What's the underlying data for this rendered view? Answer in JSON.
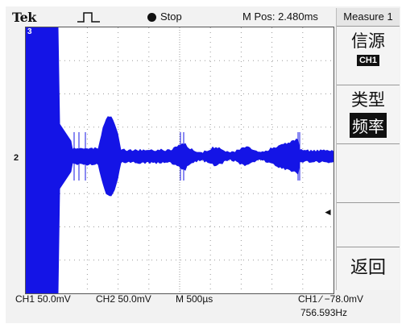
{
  "header": {
    "brand": "Tek",
    "trigger_mode_icon": "pulse-icon",
    "run_state": "Stop",
    "m_pos": "M Pos: 2.480ms"
  },
  "screen": {
    "ch1_marker": "2",
    "top_marker": "3",
    "trigger_arrow": "◄"
  },
  "menu": {
    "title": "Measure 1",
    "source_label": "信源",
    "source_value": "CH1",
    "type_label": "类型",
    "type_value": "频率",
    "back_label": "返回"
  },
  "status": {
    "ch1_scale": "CH1  50.0mV",
    "ch2_scale": "CH2  50.0mV",
    "timebase": "M 500µs",
    "trigger": "CH1 ∕ −78.0mV",
    "frequency": "756.593Hz"
  },
  "colors": {
    "trace": "#1414e6",
    "background": "#ffffff",
    "grid": "#9a9a9a"
  }
}
